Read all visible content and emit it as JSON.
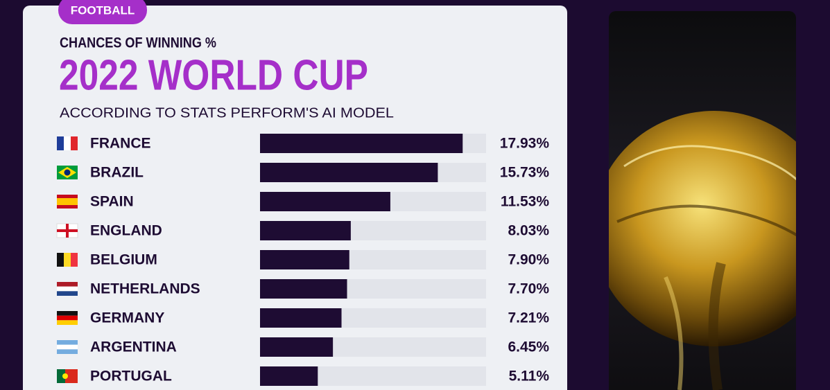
{
  "chart_data": {
    "type": "bar",
    "orientation": "horizontal",
    "tag": "FOOTBALL",
    "title": "2022 WORLD CUP",
    "kicker": "CHANCES OF WINNING %",
    "subtitle": "ACCORDING TO STATS PERFORM'S AI MODEL",
    "categories": [
      "FRANCE",
      "BRAZIL",
      "SPAIN",
      "ENGLAND",
      "BELGIUM",
      "NETHERLANDS",
      "GERMANY",
      "ARGENTINA",
      "PORTUGAL"
    ],
    "values": [
      17.93,
      15.73,
      11.53,
      8.03,
      7.9,
      7.7,
      7.21,
      6.45,
      5.11
    ],
    "value_labels": [
      "17.93%",
      "15.73%",
      "11.53%",
      "8.03%",
      "7.90%",
      "7.70%",
      "7.21%",
      "6.45%",
      "5.11%"
    ],
    "xlim": [
      0,
      20
    ],
    "color": "#1e0c33",
    "track_color": "#e2e4ea",
    "title_color": "#a52fc9"
  }
}
